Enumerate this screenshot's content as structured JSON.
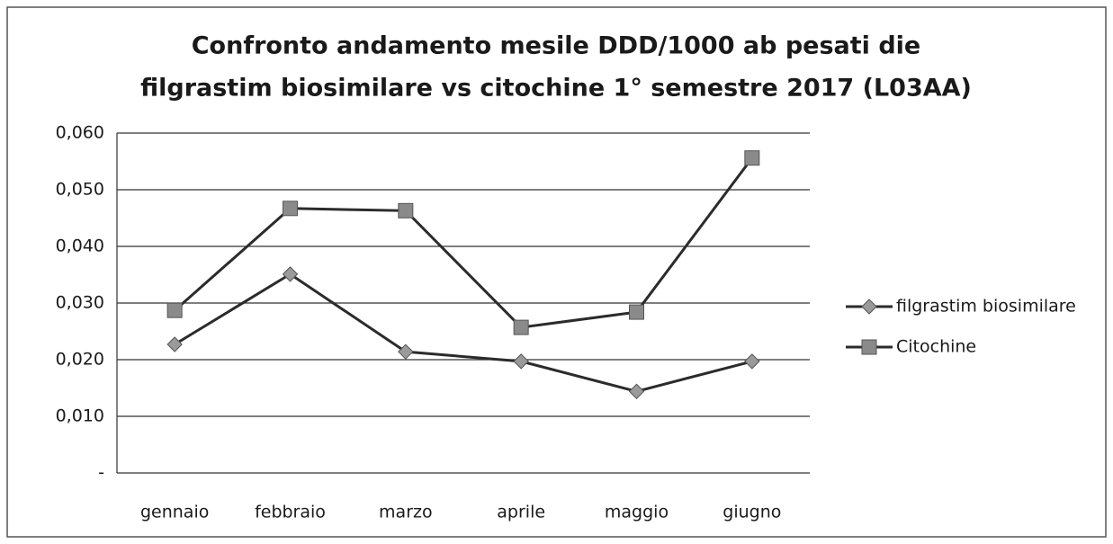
{
  "chart_data": {
    "type": "line",
    "title": [
      "Confronto andamento mesile DDD/1000 ab pesati die",
      "filgrastim biosimilare vs citochine 1° semestre 2017 (L03AA)"
    ],
    "categories": [
      "gennaio",
      "febbraio",
      "marzo",
      "aprile",
      "maggio",
      "giugno"
    ],
    "series": [
      {
        "name": "filgrastim biosimilare",
        "color": "#2b2b2b",
        "marker": "diamond",
        "values": [
          0.0227,
          0.0351,
          0.0214,
          0.0197,
          0.0144,
          0.0197
        ]
      },
      {
        "name": "Citochine",
        "color": "#2b2b2b",
        "marker": "square",
        "values": [
          0.0287,
          0.0467,
          0.0463,
          0.0257,
          0.0284,
          0.0556
        ]
      }
    ],
    "ylim": [
      0,
      0.06
    ],
    "yticks": [
      {
        "value": 0,
        "label": "-"
      },
      {
        "value": 0.01,
        "label": "0,010"
      },
      {
        "value": 0.02,
        "label": "0,020"
      },
      {
        "value": 0.03,
        "label": "0,030"
      },
      {
        "value": 0.04,
        "label": "0,040"
      },
      {
        "value": 0.05,
        "label": "0,050"
      },
      {
        "value": 0.06,
        "label": "0,060"
      }
    ],
    "grid": true,
    "legend": "right"
  }
}
